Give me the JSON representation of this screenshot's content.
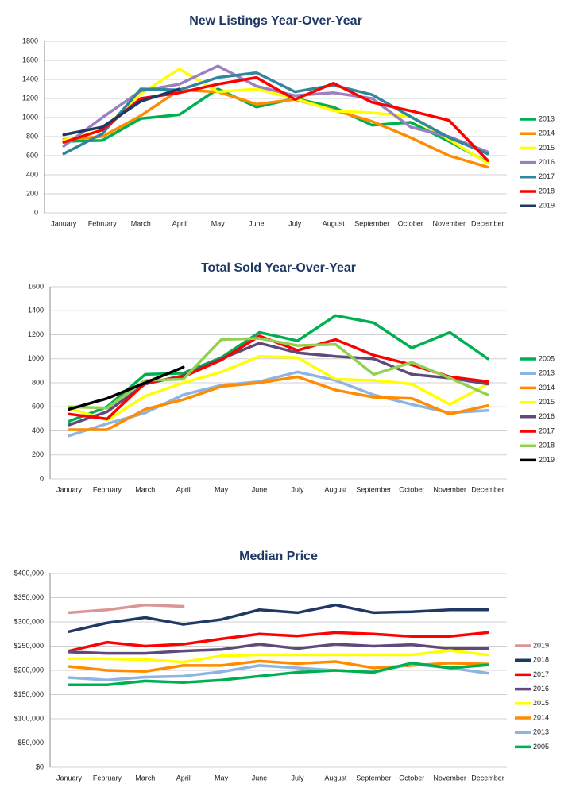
{
  "chart_data": [
    {
      "type": "line",
      "title": "New Listings Year-Over-Year",
      "categories": [
        "January",
        "February",
        "March",
        "April",
        "May",
        "June",
        "July",
        "August",
        "September",
        "October",
        "November",
        "December"
      ],
      "ylim": [
        0,
        1800
      ],
      "yticks": [
        0,
        200,
        400,
        600,
        800,
        1000,
        1200,
        1400,
        1600,
        1800
      ],
      "grid": true,
      "legend": "right",
      "series": [
        {
          "name": "2013",
          "color": "#00b050",
          "values": [
            750,
            760,
            990,
            1030,
            1300,
            1110,
            1200,
            1110,
            920,
            950,
            750,
            530
          ]
        },
        {
          "name": "2014",
          "color": "#ff8c00",
          "values": [
            770,
            800,
            1020,
            1290,
            1270,
            1140,
            1190,
            1080,
            960,
            790,
            600,
            480
          ]
        },
        {
          "name": "2015",
          "color": "#ffff00",
          "values": [
            760,
            870,
            1250,
            1510,
            1270,
            1300,
            1200,
            1070,
            1050,
            1010,
            770,
            520
          ]
        },
        {
          "name": "2016",
          "color": "#9b7fc0",
          "values": [
            700,
            1000,
            1280,
            1350,
            1540,
            1330,
            1230,
            1260,
            1200,
            900,
            800,
            640
          ]
        },
        {
          "name": "2017",
          "color": "#31859c",
          "values": [
            620,
            830,
            1300,
            1290,
            1420,
            1470,
            1270,
            1340,
            1240,
            1010,
            790,
            620
          ]
        },
        {
          "name": "2018",
          "color": "#ff0000",
          "values": [
            740,
            870,
            1200,
            1260,
            1350,
            1420,
            1190,
            1360,
            1160,
            1070,
            970,
            550
          ]
        },
        {
          "name": "2019",
          "color": "#1f3864",
          "values": [
            820,
            900,
            1170,
            1300,
            null,
            null,
            null,
            null,
            null,
            null,
            null,
            null
          ]
        }
      ]
    },
    {
      "type": "line",
      "title": "Total Sold Year-Over-Year",
      "categories": [
        "January",
        "February",
        "March",
        "April",
        "May",
        "June",
        "July",
        "August",
        "September",
        "October",
        "November",
        "December"
      ],
      "ylim": [
        0,
        1600
      ],
      "yticks": [
        0,
        200,
        400,
        600,
        800,
        1000,
        1200,
        1400,
        1600
      ],
      "grid": true,
      "legend": "right",
      "series": [
        {
          "name": "2005",
          "color": "#00b050",
          "values": [
            480,
            600,
            870,
            880,
            1010,
            1220,
            1150,
            1360,
            1300,
            1090,
            1220,
            1000
          ]
        },
        {
          "name": "2013",
          "color": "#8db4e2",
          "values": [
            360,
            460,
            550,
            700,
            780,
            810,
            890,
            820,
            700,
            620,
            550,
            570
          ]
        },
        {
          "name": "2014",
          "color": "#ff8c00",
          "values": [
            410,
            410,
            580,
            660,
            770,
            800,
            850,
            740,
            680,
            670,
            540,
            610
          ]
        },
        {
          "name": "2015",
          "color": "#ffff00",
          "values": [
            590,
            490,
            690,
            800,
            890,
            1020,
            1010,
            830,
            820,
            790,
            620,
            790
          ]
        },
        {
          "name": "2016",
          "color": "#604a7b",
          "values": [
            450,
            560,
            790,
            860,
            1000,
            1130,
            1050,
            1020,
            1000,
            870,
            840,
            790
          ]
        },
        {
          "name": "2017",
          "color": "#ff0000",
          "values": [
            540,
            500,
            800,
            850,
            990,
            1190,
            1070,
            1160,
            1030,
            950,
            850,
            810
          ]
        },
        {
          "name": "2018",
          "color": "#92d050",
          "values": [
            600,
            590,
            820,
            830,
            1160,
            1170,
            1110,
            1120,
            870,
            970,
            840,
            700
          ]
        },
        {
          "name": "2019",
          "color": "#000000",
          "values": [
            580,
            670,
            800,
            930,
            null,
            null,
            null,
            null,
            null,
            null,
            null,
            null
          ]
        }
      ]
    },
    {
      "type": "line",
      "title": "Median Price",
      "categories": [
        "January",
        "February",
        "March",
        "April",
        "May",
        "June",
        "July",
        "August",
        "September",
        "October",
        "November",
        "December"
      ],
      "ylim": [
        0,
        400000
      ],
      "yticks": [
        {
          "value": 0,
          "label": "$0"
        },
        {
          "value": 50000,
          "label": "$50,000"
        },
        {
          "value": 100000,
          "label": "$100,000"
        },
        {
          "value": 150000,
          "label": "$150,000"
        },
        {
          "value": 200000,
          "label": "$200,000"
        },
        {
          "value": 250000,
          "label": "$250,000"
        },
        {
          "value": 300000,
          "label": "$300,000"
        },
        {
          "value": 350000,
          "label": "$350,000"
        },
        {
          "value": 400000,
          "label": "$400,000"
        }
      ],
      "grid": true,
      "legend": "right",
      "series": [
        {
          "name": "2019",
          "color": "#d99694",
          "values": [
            319000,
            325000,
            335000,
            332000,
            null,
            null,
            null,
            null,
            null,
            null,
            null,
            null
          ]
        },
        {
          "name": "2018",
          "color": "#1f3864",
          "values": [
            280000,
            298000,
            309000,
            295000,
            305000,
            325000,
            319000,
            335000,
            319000,
            321000,
            325000,
            325000
          ]
        },
        {
          "name": "2017",
          "color": "#ff0000",
          "values": [
            240000,
            258000,
            250000,
            254000,
            265000,
            275000,
            271000,
            278000,
            275000,
            270000,
            270000,
            278000
          ]
        },
        {
          "name": "2016",
          "color": "#604a7b",
          "values": [
            238000,
            235000,
            235000,
            240000,
            243000,
            254000,
            245000,
            254000,
            250000,
            253000,
            245000,
            245000
          ]
        },
        {
          "name": "2015",
          "color": "#ffff00",
          "values": [
            224000,
            224000,
            222000,
            217000,
            230000,
            232000,
            232000,
            232000,
            232000,
            232000,
            241000,
            232000
          ]
        },
        {
          "name": "2014",
          "color": "#ff8c00",
          "values": [
            208000,
            200000,
            198000,
            210000,
            210000,
            219000,
            214000,
            218000,
            205000,
            210000,
            215000,
            213000
          ]
        },
        {
          "name": "2013",
          "color": "#8db4e2",
          "values": [
            185000,
            180000,
            186000,
            188000,
            197000,
            210000,
            205000,
            200000,
            197000,
            213000,
            205000,
            194000
          ]
        },
        {
          "name": "2005",
          "color": "#00b050",
          "values": [
            170000,
            170000,
            178000,
            175000,
            180000,
            188000,
            196000,
            200000,
            196000,
            215000,
            205000,
            211000
          ]
        }
      ]
    }
  ]
}
